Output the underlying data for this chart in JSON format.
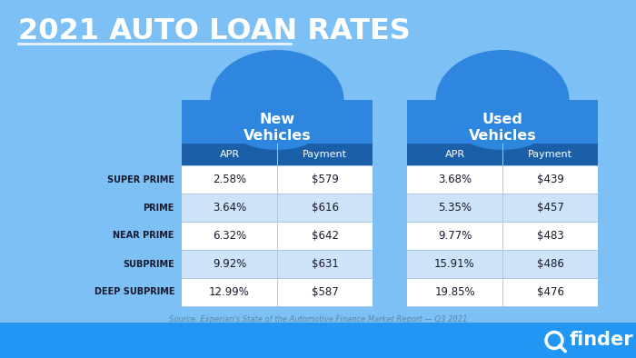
{
  "title": "2021 AUTO LOAN RATES",
  "bg_color": "#7dc0f5",
  "header_blue": "#2e86de",
  "header_dark": "#1a5fa8",
  "row_white": "#ffffff",
  "row_light_blue": "#cce3f8",
  "text_dark": "#1a1a2e",
  "text_white": "#ffffff",
  "categories": [
    "SUPER PRIME",
    "PRIME",
    "NEAR PRIME",
    "SUBPRIME",
    "DEEP SUBPRIME"
  ],
  "new_apr": [
    "2.58%",
    "3.64%",
    "6.32%",
    "9.92%",
    "12.99%"
  ],
  "new_payment": [
    "$579",
    "$616",
    "$642",
    "$631",
    "$587"
  ],
  "used_apr": [
    "3.68%",
    "5.35%",
    "9.77%",
    "15.91%",
    "19.85%"
  ],
  "used_payment": [
    "$439",
    "$457",
    "$483",
    "$486",
    "$476"
  ],
  "source": "Source: Experian's State of the Automotive Finance Market Report — Q3 2021",
  "footer_color": "#2196f3",
  "footer_text": "finder",
  "source_color": "#5588aa",
  "new_label": "New\nVehicles",
  "used_label": "Used\nVehicles",
  "col1": "APR",
  "col2": "Payment",
  "underline_color": "#e8f4ff"
}
